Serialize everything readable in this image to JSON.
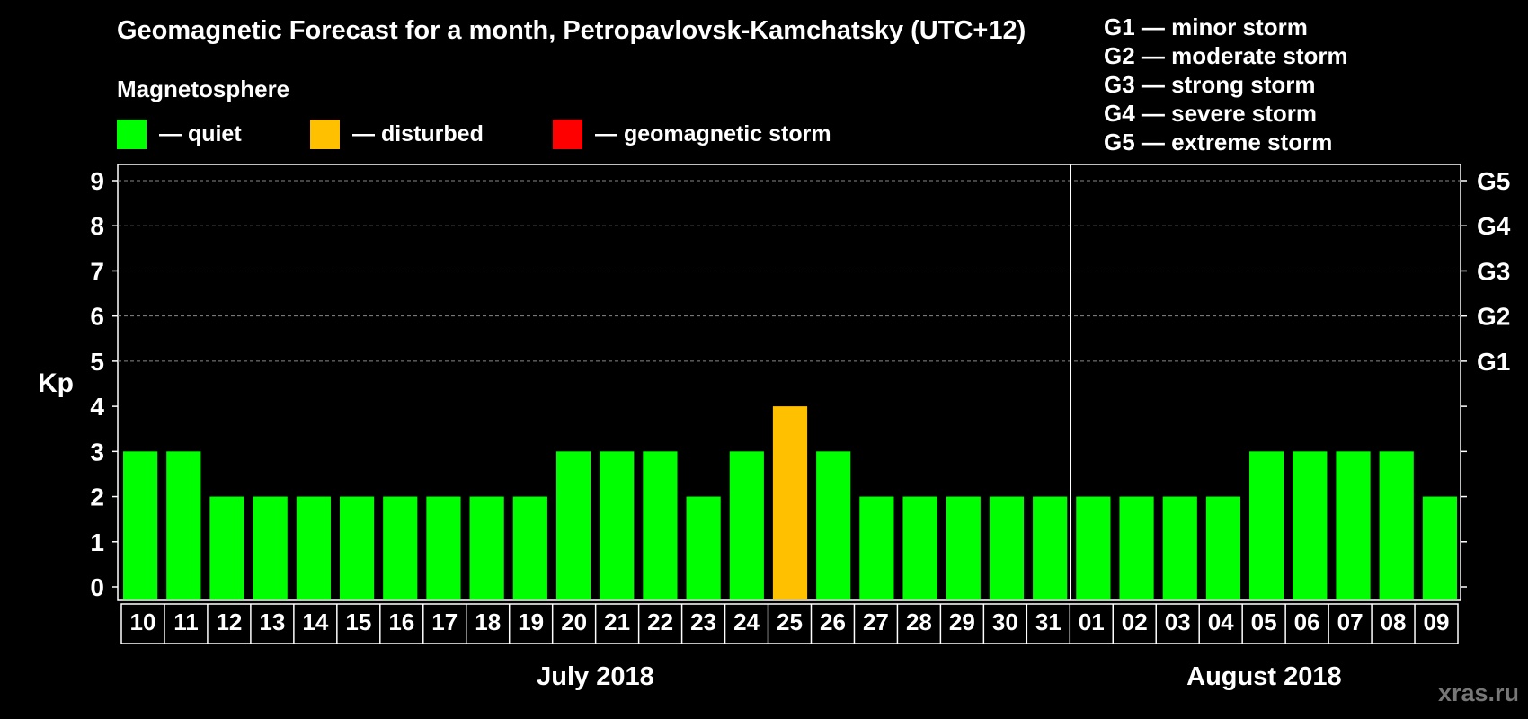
{
  "title": "Geomagnetic Forecast for a month, Petropavlovsk-Kamchatsky (UTC+12)",
  "subtitle": "Magnetosphere",
  "legend": [
    {
      "label": "— quiet",
      "color": "#00ff00"
    },
    {
      "label": "— disturbed",
      "color": "#ffc000"
    },
    {
      "label": "— geomagnetic storm",
      "color": "#ff0000"
    }
  ],
  "storm_scale": [
    "G1 — minor storm",
    "G2 — moderate storm",
    "G3 — strong storm",
    "G4 — severe storm",
    "G5 — extreme storm"
  ],
  "watermark": "xras.ru",
  "chart_data": {
    "type": "bar",
    "title": "Geomagnetic Forecast for a month, Petropavlovsk-Kamchatsky (UTC+12)",
    "ylabel": "Kp",
    "ylim": [
      0,
      9
    ],
    "yticks": [
      "0",
      "1",
      "2",
      "3",
      "4",
      "5",
      "6",
      "7",
      "8",
      "9"
    ],
    "right_ticks": [
      {
        "value": 5,
        "label": "G1"
      },
      {
        "value": 6,
        "label": "G2"
      },
      {
        "value": 7,
        "label": "G3"
      },
      {
        "value": 8,
        "label": "G4"
      },
      {
        "value": 9,
        "label": "G5"
      }
    ],
    "categories": [
      "10",
      "11",
      "12",
      "13",
      "14",
      "15",
      "16",
      "17",
      "18",
      "19",
      "20",
      "21",
      "22",
      "23",
      "24",
      "25",
      "26",
      "27",
      "28",
      "29",
      "30",
      "31",
      "01",
      "02",
      "03",
      "04",
      "05",
      "06",
      "07",
      "08",
      "09"
    ],
    "values": [
      3,
      3,
      2,
      2,
      2,
      2,
      2,
      2,
      2,
      2,
      3,
      3,
      3,
      2,
      3,
      4,
      3,
      2,
      2,
      2,
      2,
      2,
      2,
      2,
      2,
      2,
      3,
      3,
      3,
      3,
      2
    ],
    "status": [
      "quiet",
      "quiet",
      "quiet",
      "quiet",
      "quiet",
      "quiet",
      "quiet",
      "quiet",
      "quiet",
      "quiet",
      "quiet",
      "quiet",
      "quiet",
      "quiet",
      "quiet",
      "disturbed",
      "quiet",
      "quiet",
      "quiet",
      "quiet",
      "quiet",
      "quiet",
      "quiet",
      "quiet",
      "quiet",
      "quiet",
      "quiet",
      "quiet",
      "quiet",
      "quiet",
      "quiet"
    ],
    "colors": {
      "quiet": "#00ff00",
      "disturbed": "#ffc000",
      "storm": "#ff0000"
    },
    "months": [
      {
        "label": "July 2018",
        "start_index": 0,
        "count": 22
      },
      {
        "label": "August 2018",
        "start_index": 22,
        "count": 9
      }
    ],
    "grid": true
  }
}
